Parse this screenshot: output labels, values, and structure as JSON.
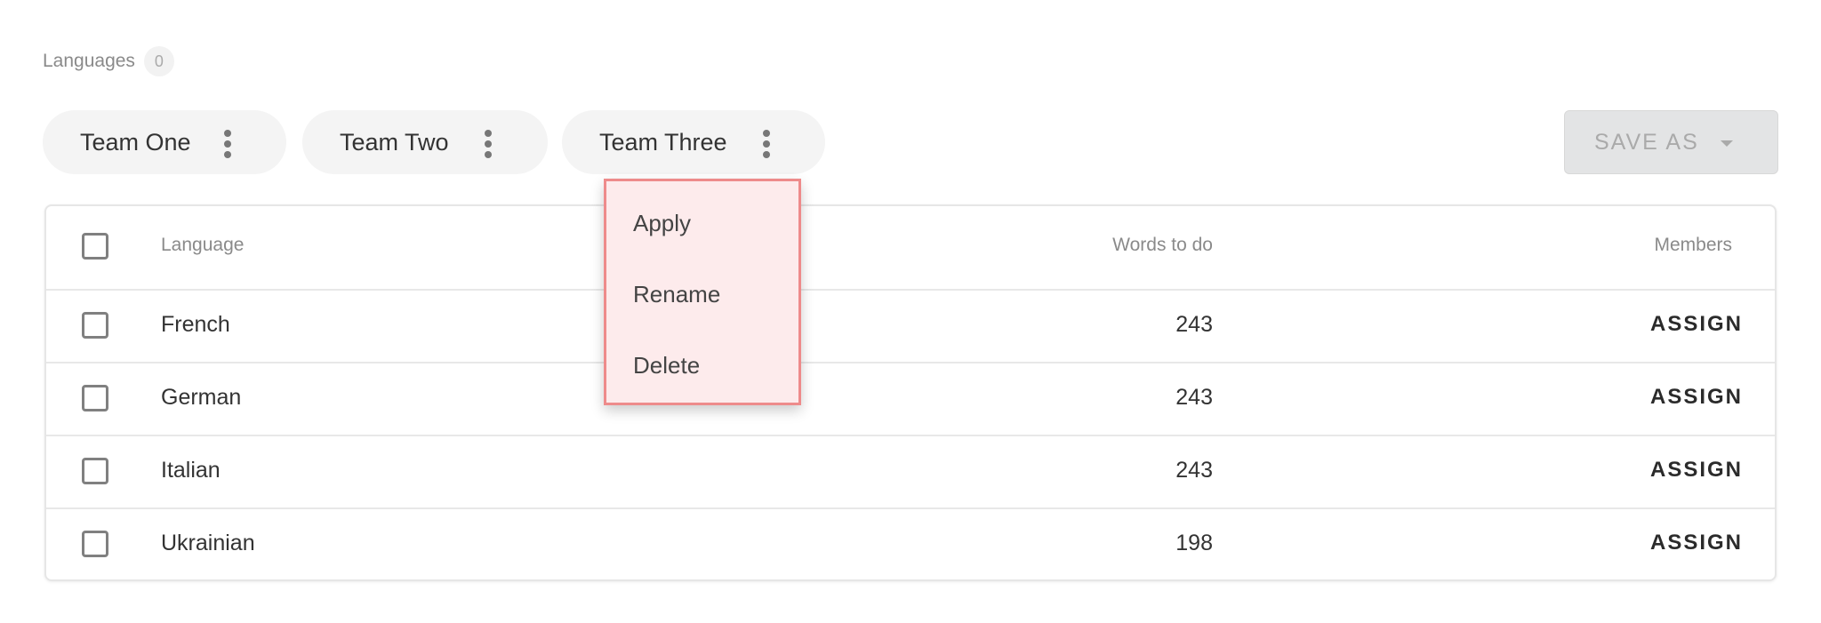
{
  "header": {
    "label": "Languages",
    "count": "0"
  },
  "teams": [
    {
      "label": "Team One"
    },
    {
      "label": "Team Two"
    },
    {
      "label": "Team Three"
    }
  ],
  "save_as": {
    "label": "SAVE AS"
  },
  "menu": {
    "items": [
      "Apply",
      "Rename",
      "Delete"
    ]
  },
  "table": {
    "columns": {
      "language": "Language",
      "words": "Words to do",
      "members": "Members"
    },
    "rows": [
      {
        "language": "French",
        "words": "243",
        "action": "ASSIGN"
      },
      {
        "language": "German",
        "words": "243",
        "action": "ASSIGN"
      },
      {
        "language": "Italian",
        "words": "243",
        "action": "ASSIGN"
      },
      {
        "language": "Ukrainian",
        "words": "198",
        "action": "ASSIGN"
      }
    ]
  }
}
